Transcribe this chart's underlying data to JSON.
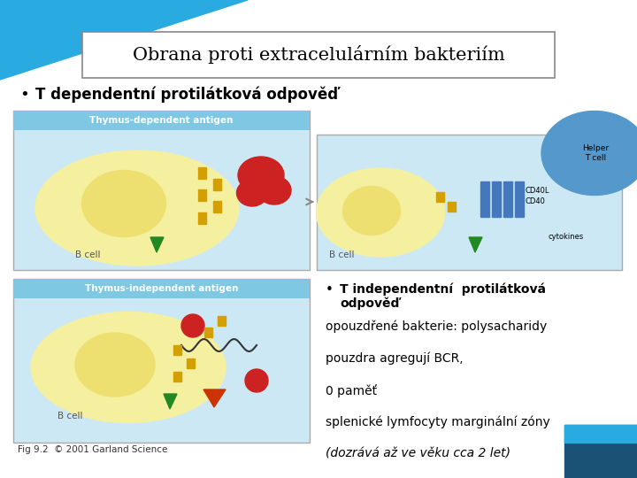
{
  "bg_color": "#ffffff",
  "teal": "#29abe2",
  "dark_blue": "#1a5276",
  "title_text": "Obrana proti extracelulárním bakteriím",
  "bullet1_bold": "T dependentní protilátková odpověď",
  "bullet2_bold_line1": "T independentní  protilátková",
  "bullet2_bold_line2": "odpověď",
  "line3": "opouzdřené bakterie: polysacharidy",
  "line4": "pouzdra agregují BCR,",
  "line5": "0 paměť",
  "line6": "splenické lymfocyty marginální zóny",
  "line7": "(dozrává až ve věku cca 2 let)",
  "caption": "Fig 9.2  © 2001 Garland Science",
  "panel_bg": "#cce8f4",
  "panel_label_bg": "#7ec8e3",
  "bcell_outer": "#f5f0a0",
  "bcell_inner": "#ede070",
  "red_antigen": "#cc2222",
  "green_arrow": "#228822",
  "yellow_bcr": "#d4a000",
  "blue_receptor": "#4477bb",
  "helper_blue": "#5599cc"
}
